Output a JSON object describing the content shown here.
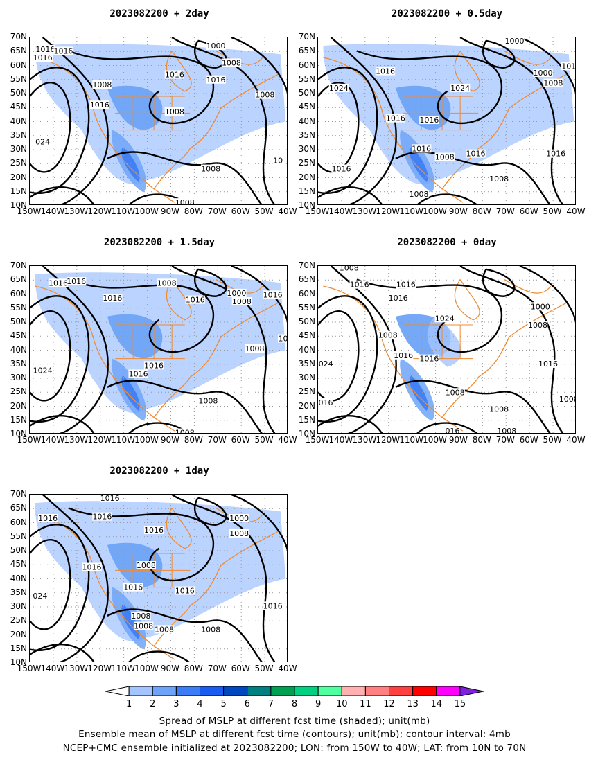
{
  "panels": [
    {
      "title": "2023082200 + 2day",
      "ctr": [
        "1016",
        "1016",
        "1016",
        "1000",
        "1008",
        "1016",
        "1008",
        "1016",
        "1008",
        "1008",
        "1016",
        "024",
        "10",
        "1008",
        "1008"
      ]
    },
    {
      "title": "2023082200 + 0.5day",
      "ctr": [
        "1000",
        "1016",
        "1024",
        "1000",
        "1008",
        "1024",
        "1016",
        "1016",
        "1016",
        "1016",
        "1016",
        "1008",
        "1008",
        "1008",
        "1016",
        "101"
      ]
    },
    {
      "title": "2023082200 + 1.5day",
      "ctr": [
        "1016",
        "1016",
        "1016",
        "1008",
        "1016",
        "1000",
        "1008",
        "1016",
        "1008",
        "1016",
        "1016",
        "1024",
        "1008",
        "1008",
        "10"
      ]
    },
    {
      "title": "2023082200 + 0day",
      "ctr": [
        "1008",
        "1016",
        "1016",
        "1016",
        "1024",
        "1000",
        "1008",
        "1008",
        "1016",
        "1016",
        "1016",
        "024",
        "1008",
        "1008",
        "1016",
        "1008",
        "1008",
        "016"
      ]
    },
    {
      "title": "2023082200 + 1day",
      "ctr": [
        "1016",
        "1016",
        "1016",
        "1016",
        "1000",
        "1008",
        "1016",
        "1008",
        "1016",
        "1016",
        "1008",
        "1008",
        "1008",
        "1008",
        "024",
        "1016"
      ]
    }
  ],
  "axes": {
    "lat_labels": [
      "70N",
      "65N",
      "60N",
      "55N",
      "50N",
      "45N",
      "40N",
      "35N",
      "30N",
      "25N",
      "20N",
      "15N",
      "10N"
    ],
    "lon_labels": [
      "150W",
      "140W",
      "130W",
      "120W",
      "110W",
      "100W",
      "90W",
      "80W",
      "70W",
      "60W",
      "50W",
      "40W"
    ]
  },
  "colorbar": {
    "ticks": [
      "1",
      "2",
      "3",
      "4",
      "5",
      "6",
      "7",
      "8",
      "9",
      "10",
      "11",
      "12",
      "13",
      "14",
      "15"
    ],
    "colors": [
      "#ffffff",
      "#a4c4ff",
      "#6ea4f8",
      "#3c7cf4",
      "#1a5cf0",
      "#0048c0",
      "#008080",
      "#00a050",
      "#00d080",
      "#50ffa0",
      "#ffb0b0",
      "#ff8080",
      "#ff4040",
      "#ff0000",
      "#ff00ff",
      "#8020e0"
    ]
  },
  "caption": {
    "line1": "Spread of MSLP at different fcst time (shaded); unit(mb)",
    "line2": "Ensemble mean of MSLP at different fcst time (contours); unit(mb); contour interval: 4mb",
    "line3": "NCEP+CMC ensemble initialized at 2023082200; LON: from 150W to 40W; LAT: from 10N to 70N"
  }
}
